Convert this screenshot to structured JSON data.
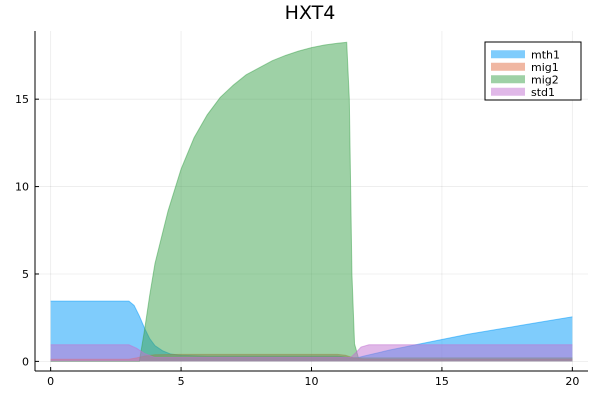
{
  "chart_data": {
    "type": "area",
    "title": "HXT4",
    "xlabel": "",
    "ylabel": "",
    "xlim": [
      -0.6,
      20.6
    ],
    "ylim": [
      -0.55,
      18.9
    ],
    "x_ticks": [
      0,
      5,
      10,
      15,
      20
    ],
    "x_tick_labels": [
      "0",
      "5",
      "10",
      "15",
      "20"
    ],
    "y_ticks": [
      0,
      5,
      10,
      15
    ],
    "y_tick_labels": [
      "0",
      "5",
      "10",
      "15"
    ],
    "grid": true,
    "legend_position": "top-right",
    "series": [
      {
        "name": "mth1",
        "color": "#009af9",
        "fill_to": 0,
        "x": [
          0,
          3.0,
          3.2,
          3.4,
          3.6,
          3.8,
          4.0,
          4.3,
          4.6,
          5.0,
          5.5,
          6.0,
          11.0,
          11.3,
          11.5,
          11.8,
          12.0,
          13.0,
          14.0,
          15.0,
          16.0,
          17.0,
          18.0,
          19.0,
          20.0
        ],
        "y": [
          3.45,
          3.45,
          3.2,
          2.6,
          1.9,
          1.3,
          0.9,
          0.6,
          0.42,
          0.35,
          0.32,
          0.3,
          0.3,
          0.25,
          0.2,
          0.22,
          0.3,
          0.65,
          0.95,
          1.25,
          1.55,
          1.8,
          2.05,
          2.3,
          2.55
        ]
      },
      {
        "name": "mig1",
        "color": "#e26f46",
        "fill_to": 0,
        "x": [
          0,
          3.0,
          3.3,
          3.6,
          4.0,
          5.0,
          11.0,
          11.3,
          11.6,
          12.0,
          20.0
        ],
        "y": [
          0.12,
          0.12,
          0.2,
          0.3,
          0.38,
          0.4,
          0.4,
          0.35,
          0.2,
          0.12,
          0.12
        ]
      },
      {
        "name": "mig2",
        "color": "#3da44d",
        "fill_to": 0,
        "x": [
          0,
          3.4,
          3.6,
          3.8,
          4.0,
          4.5,
          5.0,
          5.5,
          6.0,
          6.5,
          7.0,
          7.5,
          8.0,
          8.5,
          9.0,
          9.5,
          10.0,
          10.5,
          11.0,
          11.35,
          11.45,
          11.55,
          11.65,
          11.8,
          20.0
        ],
        "y": [
          0,
          0,
          1.8,
          3.8,
          5.6,
          8.6,
          11.0,
          12.8,
          14.1,
          15.1,
          15.8,
          16.4,
          16.8,
          17.2,
          17.5,
          17.75,
          17.95,
          18.1,
          18.2,
          18.25,
          15.0,
          5.0,
          1.0,
          0.2,
          0.2
        ]
      },
      {
        "name": "std1",
        "color": "#c271d2",
        "fill_to": 0,
        "x": [
          0,
          3.0,
          3.3,
          3.6,
          4.0,
          11.5,
          11.7,
          11.9,
          12.2,
          12.5,
          20.0
        ],
        "y": [
          0.95,
          0.95,
          0.75,
          0.45,
          0.22,
          0.22,
          0.5,
          0.82,
          0.95,
          0.95,
          0.95
        ]
      }
    ]
  }
}
